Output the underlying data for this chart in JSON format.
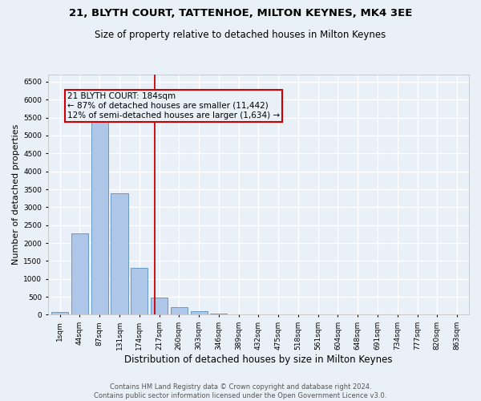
{
  "title": "21, BLYTH COURT, TATTENHOE, MILTON KEYNES, MK4 3EE",
  "subtitle": "Size of property relative to detached houses in Milton Keynes",
  "xlabel": "Distribution of detached houses by size in Milton Keynes",
  "ylabel": "Number of detached properties",
  "footer1": "Contains HM Land Registry data © Crown copyright and database right 2024.",
  "footer2": "Contains public sector information licensed under the Open Government Licence v3.0.",
  "bar_labels": [
    "1sqm",
    "44sqm",
    "87sqm",
    "131sqm",
    "174sqm",
    "217sqm",
    "260sqm",
    "303sqm",
    "346sqm",
    "389sqm",
    "432sqm",
    "475sqm",
    "518sqm",
    "561sqm",
    "604sqm",
    "648sqm",
    "691sqm",
    "734sqm",
    "777sqm",
    "820sqm",
    "863sqm"
  ],
  "bar_values": [
    70,
    2280,
    5400,
    3380,
    1310,
    470,
    200,
    90,
    30,
    10,
    5,
    0,
    0,
    0,
    0,
    0,
    0,
    0,
    0,
    0,
    0
  ],
  "bar_color": "#aec6e8",
  "bar_edgecolor": "#5a8fc0",
  "property_label": "21 BLYTH COURT: 184sqm",
  "annotation_line1": "← 87% of detached houses are smaller (11,442)",
  "annotation_line2": "12% of semi-detached houses are larger (1,634) →",
  "vline_color": "#cc0000",
  "vline_x_index": 4.77,
  "ylim": [
    0,
    6700
  ],
  "yticks": [
    0,
    500,
    1000,
    1500,
    2000,
    2500,
    3000,
    3500,
    4000,
    4500,
    5000,
    5500,
    6000,
    6500
  ],
  "bg_color": "#eaf0f8",
  "grid_color": "#ffffff",
  "title_fontsize": 9.5,
  "subtitle_fontsize": 8.5,
  "axis_label_fontsize": 8,
  "tick_fontsize": 6.5,
  "footer_fontsize": 6,
  "annotation_fontsize": 7.5
}
